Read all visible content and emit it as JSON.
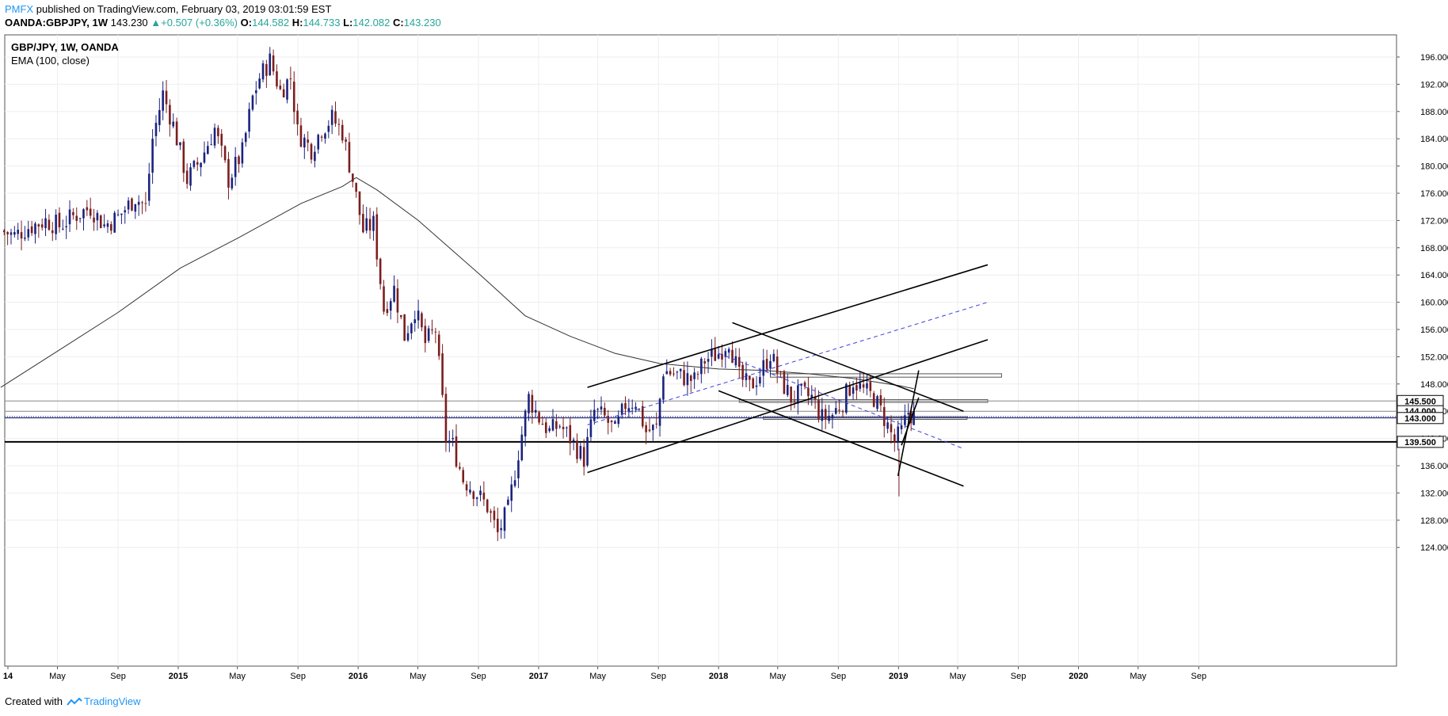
{
  "header": {
    "publisher": "PMFX",
    "published_text": "published on TradingView.com, February 03, 2019 03:01:59 EST",
    "symbol": "OANDA:GBPJPY, 1W",
    "last": "143.230",
    "change": "+0.507 (+0.36%)",
    "open_label": "O:",
    "open": "144.582",
    "high_label": "H:",
    "high": "144.733",
    "low_label": "L:",
    "low": "142.082",
    "close_label": "C:",
    "close": "143.230"
  },
  "legend": {
    "title": "GBP/JPY, 1W, OANDA",
    "indicator": "EMA (100, close)"
  },
  "footer": {
    "created_with": "Created with",
    "brand": "TradingView"
  },
  "colors": {
    "up_candle": "#1a237e",
    "down_candle": "#7b1e1e",
    "ema": "#333333",
    "channel": "#000000",
    "midline": "#3f3fd8",
    "price_line": "#1a237e",
    "header_green": "#26a69a",
    "brand_blue": "#2196f3"
  },
  "chart_data": {
    "type": "candlestick",
    "symbol": "GBP/JPY",
    "interval": "1W",
    "broker": "OANDA",
    "ylim": [
      121.5,
      199.5
    ],
    "y_ticks": [
      "124.000",
      "128.000",
      "132.000",
      "136.000",
      "140.000",
      "144.000",
      "148.000",
      "152.000",
      "156.000",
      "160.000",
      "164.000",
      "168.000",
      "172.000",
      "176.000",
      "180.000",
      "184.000",
      "188.000",
      "192.000",
      "196.000"
    ],
    "x_ticks": [
      "14",
      "May",
      "Sep",
      "2015",
      "May",
      "Sep",
      "2016",
      "May",
      "Sep",
      "2017",
      "May",
      "Sep",
      "2018",
      "May",
      "Sep",
      "2019",
      "May",
      "Sep",
      "2020",
      "May",
      "Sep"
    ],
    "x_range": [
      "2014-01-01",
      "2020-12-31"
    ],
    "grid": true,
    "price_labels": [
      {
        "text": "145.500",
        "value": 145.5
      },
      {
        "text": "144.000",
        "value": 144.0
      },
      {
        "text": "143.000",
        "value": 143.0
      },
      {
        "text": "139.500",
        "value": 139.5
      }
    ],
    "current_price": 143.23,
    "close_series": [
      [
        "2014-01-06",
        170.5
      ],
      [
        "2014-02-03",
        169.8
      ],
      [
        "2014-03-03",
        171.0
      ],
      [
        "2014-04-07",
        172.0
      ],
      [
        "2014-05-05",
        171.2
      ],
      [
        "2014-06-02",
        172.6
      ],
      [
        "2014-07-07",
        173.9
      ],
      [
        "2014-08-04",
        171.3
      ],
      [
        "2014-09-01",
        172.5
      ],
      [
        "2014-10-06",
        175.4
      ],
      [
        "2014-10-27",
        174.0
      ],
      [
        "2014-11-10",
        184.0
      ],
      [
        "2014-12-01",
        190.6
      ],
      [
        "2014-12-22",
        186.0
      ],
      [
        "2015-01-19",
        178.0
      ],
      [
        "2015-02-16",
        181.0
      ],
      [
        "2015-03-16",
        185.5
      ],
      [
        "2015-04-13",
        178.0
      ],
      [
        "2015-05-11",
        182.0
      ],
      [
        "2015-06-01",
        190.0
      ],
      [
        "2015-06-15",
        193.0
      ],
      [
        "2015-07-06",
        195.5
      ],
      [
        "2015-07-27",
        191.0
      ],
      [
        "2015-08-17",
        193.0
      ],
      [
        "2015-08-31",
        185.0
      ],
      [
        "2015-09-28",
        182.5
      ],
      [
        "2015-10-19",
        185.5
      ],
      [
        "2015-11-09",
        187.0
      ],
      [
        "2015-11-30",
        185.0
      ],
      [
        "2015-12-21",
        178.0
      ],
      [
        "2016-01-11",
        170.5
      ],
      [
        "2016-02-01",
        171.5
      ],
      [
        "2016-02-22",
        159.0
      ],
      [
        "2016-03-14",
        162.0
      ],
      [
        "2016-04-04",
        155.0
      ],
      [
        "2016-04-25",
        159.0
      ],
      [
        "2016-05-16",
        154.0
      ],
      [
        "2016-06-06",
        156.0
      ],
      [
        "2016-06-27",
        140.0
      ],
      [
        "2016-07-11",
        139.0
      ],
      [
        "2016-08-01",
        134.0
      ],
      [
        "2016-08-22",
        132.5
      ],
      [
        "2016-09-19",
        130.0
      ],
      [
        "2016-10-10",
        126.0
      ],
      [
        "2016-10-31",
        129.5
      ],
      [
        "2016-11-21",
        138.0
      ],
      [
        "2016-12-12",
        146.0
      ],
      [
        "2017-01-02",
        143.0
      ],
      [
        "2017-01-23",
        141.0
      ],
      [
        "2017-02-13",
        142.0
      ],
      [
        "2017-03-06",
        140.0
      ],
      [
        "2017-04-03",
        137.0
      ],
      [
        "2017-04-24",
        144.0
      ],
      [
        "2017-05-15",
        143.0
      ],
      [
        "2017-06-05",
        141.0
      ],
      [
        "2017-06-26",
        145.0
      ],
      [
        "2017-07-17",
        145.5
      ],
      [
        "2017-08-07",
        141.0
      ],
      [
        "2017-08-28",
        141.5
      ],
      [
        "2017-09-11",
        150.0
      ],
      [
        "2017-10-02",
        149.5
      ],
      [
        "2017-10-23",
        149.0
      ],
      [
        "2017-11-13",
        148.5
      ],
      [
        "2017-12-04",
        151.5
      ],
      [
        "2018-01-01",
        152.5
      ],
      [
        "2018-01-22",
        154.5
      ],
      [
        "2018-02-12",
        149.0
      ],
      [
        "2018-03-05",
        147.5
      ],
      [
        "2018-03-26",
        149.5
      ],
      [
        "2018-04-16",
        152.5
      ],
      [
        "2018-05-07",
        148.5
      ],
      [
        "2018-05-28",
        146.0
      ],
      [
        "2018-06-18",
        146.5
      ],
      [
        "2018-07-09",
        146.0
      ],
      [
        "2018-07-30",
        143.0
      ],
      [
        "2018-08-20",
        143.5
      ],
      [
        "2018-09-10",
        145.5
      ],
      [
        "2018-10-01",
        148.5
      ],
      [
        "2018-10-22",
        147.0
      ],
      [
        "2018-11-12",
        146.0
      ],
      [
        "2018-12-03",
        143.0
      ],
      [
        "2018-12-24",
        139.5
      ],
      [
        "2019-01-07",
        141.0
      ],
      [
        "2019-01-21",
        143.9
      ],
      [
        "2019-02-01",
        143.23
      ]
    ],
    "ema_100": [
      [
        "2014-01-06",
        147.5
      ],
      [
        "2014-05-05",
        153.0
      ],
      [
        "2014-09-01",
        158.5
      ],
      [
        "2015-01-05",
        165.0
      ],
      [
        "2015-05-04",
        169.5
      ],
      [
        "2015-09-07",
        174.5
      ],
      [
        "2015-11-30",
        177.0
      ],
      [
        "2015-12-28",
        178.3
      ],
      [
        "2016-02-08",
        176.5
      ],
      [
        "2016-05-02",
        172.0
      ],
      [
        "2016-09-05",
        164.0
      ],
      [
        "2016-12-05",
        158.0
      ],
      [
        "2017-03-06",
        155.0
      ],
      [
        "2017-06-05",
        152.5
      ],
      [
        "2017-09-04",
        151.0
      ],
      [
        "2018-01-01",
        150.2
      ],
      [
        "2018-04-02",
        150.0
      ],
      [
        "2018-07-02",
        149.5
      ],
      [
        "2018-10-01",
        148.8
      ],
      [
        "2019-01-07",
        147.7
      ],
      [
        "2019-02-01",
        147.3
      ]
    ],
    "trendlines": [
      {
        "style": "solid",
        "from": [
          "2017-04-10",
          147.5
        ],
        "to": [
          "2019-07-01",
          165.5
        ]
      },
      {
        "style": "solid",
        "from": [
          "2017-04-10",
          135.0
        ],
        "to": [
          "2019-07-01",
          154.5
        ]
      },
      {
        "style": "dashed",
        "from": [
          "2017-04-10",
          142.0
        ],
        "to": [
          "2019-07-01",
          160.0
        ]
      },
      {
        "style": "solid",
        "from": [
          "2018-01-29",
          157.0
        ],
        "to": [
          "2019-05-13",
          144.0
        ]
      },
      {
        "style": "solid",
        "from": [
          "2018-01-01",
          147.0
        ],
        "to": [
          "2019-05-13",
          133.0
        ]
      },
      {
        "style": "dashed",
        "from": [
          "2018-01-01",
          152.5
        ],
        "to": [
          "2019-05-13",
          138.5
        ]
      },
      {
        "style": "solid",
        "from": [
          "2018-12-31",
          134.5
        ],
        "to": [
          "2019-02-11",
          150.0
        ]
      },
      {
        "style": "solid",
        "from": [
          "2019-01-07",
          139.0
        ],
        "to": [
          "2019-02-11",
          146.0
        ]
      }
    ],
    "zones": [
      {
        "from": "2018-04-16",
        "to": "2019-07-29",
        "bottom": 149.0,
        "top": 149.5
      },
      {
        "from": "2018-02-12",
        "to": "2019-07-01",
        "bottom": 145.3,
        "top": 145.7
      },
      {
        "from": "2018-04-02",
        "to": "2019-05-20",
        "bottom": 142.8,
        "top": 143.2
      }
    ]
  }
}
